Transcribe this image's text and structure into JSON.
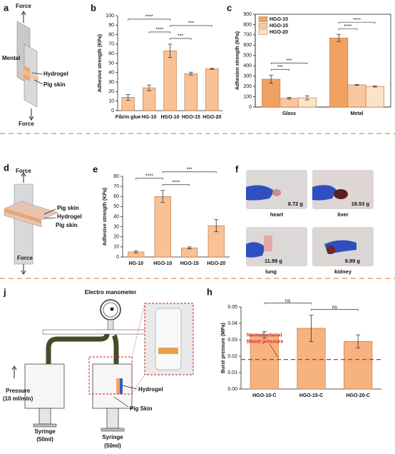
{
  "figure": {
    "letters": {
      "a": "a",
      "b": "b",
      "c": "c",
      "d": "d",
      "e": "e",
      "f": "f",
      "j": "j",
      "h": "h"
    },
    "diagram_a": {
      "force_top": "Force",
      "mental": "Mental",
      "hydrogel": "Hydrogel",
      "pig_skin": "Pig skin",
      "force_bottom": "Force"
    },
    "diagram_d": {
      "force_top": "Force",
      "pig_skin_top": "Pig skin",
      "hydrogel": "Hydrogel",
      "pig_skin_bottom": "Pig skin",
      "force_bottom": "Force"
    },
    "organs": [
      {
        "name": "heart",
        "weight": "8.72 g"
      },
      {
        "name": "liver",
        "weight": "18.53 g"
      },
      {
        "name": "lung",
        "weight": "11.99 g"
      },
      {
        "name": "kidney",
        "weight": "9.89 g"
      }
    ],
    "diagram_j": {
      "manometer": "Electro manometer",
      "pressure": "Pressure",
      "rate": "(10 ml/min)",
      "syringe_left": "Syringe",
      "volume_left": "(50ml)",
      "syringe_right": "Syringe",
      "volume_right": "(50ml)",
      "hydrogel": "Hydrogel",
      "pig_skin": "Pig Skin"
    }
  },
  "chart_data": [
    {
      "type": "bar",
      "categories": [
        "Fibrin glue",
        "HG-10",
        "HGO-10",
        "HGO-15",
        "HGO-20"
      ],
      "values": [
        14,
        24,
        63,
        39,
        44
      ],
      "errors": [
        3,
        3,
        7,
        1.5,
        0.5
      ],
      "color": "#f8c196",
      "edgecolor": "#c27a45",
      "ylabel": "Adhesive strength (KPa)",
      "ylim": [
        0,
        100
      ],
      "yticks": [
        0,
        10,
        20,
        30,
        40,
        50,
        60,
        70,
        80,
        90,
        100
      ],
      "significance": [
        {
          "between": [
            "HGO-10",
            "HGO-15"
          ],
          "label": "***"
        },
        {
          "between": [
            "HG-10",
            "HGO-10"
          ],
          "label": "****"
        },
        {
          "between": [
            "HGO-10",
            "HGO-20"
          ],
          "label": "***"
        },
        {
          "between": [
            "Fibrin glue",
            "HGO-10"
          ],
          "label": "****"
        }
      ]
    },
    {
      "type": "bar",
      "categories": [
        "Glass",
        "Metal"
      ],
      "series": [
        {
          "name": "HGO-10",
          "color": "#f0a263",
          "values": [
            270,
            670
          ],
          "errors": [
            40,
            35
          ]
        },
        {
          "name": "HGO-15",
          "color": "#f7c8a0",
          "values": [
            85,
            215
          ],
          "errors": [
            8,
            4
          ]
        },
        {
          "name": "HGO-20",
          "color": "#fbe3c8",
          "values": [
            90,
            200
          ],
          "errors": [
            20,
            6
          ]
        }
      ],
      "edgecolor": "#c27a45",
      "frame": true,
      "legend": "upper left",
      "ylabel": "Adhesion strength (KPa)",
      "ylim": [
        0,
        900
      ],
      "yticks": [
        0,
        100,
        200,
        300,
        400,
        500,
        600,
        700,
        800,
        900
      ],
      "significance": [
        {
          "category": "Glass",
          "between": [
            "HGO-10",
            "HGO-15"
          ],
          "label": "***"
        },
        {
          "category": "Glass",
          "between": [
            "HGO-10",
            "HGO-20"
          ],
          "label": "***"
        },
        {
          "category": "Metal",
          "between": [
            "HGO-10",
            "HGO-15"
          ],
          "label": "****"
        },
        {
          "category": "Metal",
          "between": [
            "HGO-10",
            "HGO-20"
          ],
          "label": "****"
        }
      ]
    },
    {
      "type": "bar",
      "categories": [
        "HG-10",
        "HGO-10",
        "HGO-15",
        "HGO-20"
      ],
      "values": [
        5,
        60,
        9,
        31
      ],
      "errors": [
        1,
        6,
        1,
        6
      ],
      "color": "#f8c196",
      "edgecolor": "#c27a45",
      "ylabel": "Adhesive strength (KPa)",
      "ylim": [
        0,
        80
      ],
      "yticks": [
        0,
        10,
        20,
        30,
        40,
        50,
        60,
        70,
        80
      ],
      "significance": [
        {
          "between": [
            "HGO-10",
            "HGO-15"
          ],
          "label": "****"
        },
        {
          "between": [
            "HG-10",
            "HGO-10"
          ],
          "label": "****"
        },
        {
          "between": [
            "HGO-10",
            "HGO-20"
          ],
          "label": "***"
        }
      ]
    },
    {
      "type": "bar",
      "categories": [
        "HGO-10-C",
        "HGO-15-C",
        "HGO-20-C"
      ],
      "values": [
        0.033,
        0.037,
        0.029
      ],
      "errors": [
        0.002,
        0.008,
        0.004
      ],
      "color": "#f6b27f",
      "edgecolor": "#c27a45",
      "ylabel": "Burst pressure (MPa)",
      "ylim": [
        0,
        0.05
      ],
      "yticks": [
        {
          "value": 0,
          "label": "0.00"
        },
        0.01,
        0.02,
        0.03,
        0.04,
        0.05
      ],
      "reference_line": {
        "value": 0.018,
        "color": "#d62728",
        "label": [
          "Normal arterial",
          "Blood pressure"
        ]
      },
      "significance": [
        {
          "between": [
            "HGO-15-C",
            "HGO-20-C"
          ],
          "label": "ns"
        },
        {
          "between": [
            "HGO-10-C",
            "HGO-15-C"
          ],
          "label": "ns"
        }
      ]
    }
  ]
}
